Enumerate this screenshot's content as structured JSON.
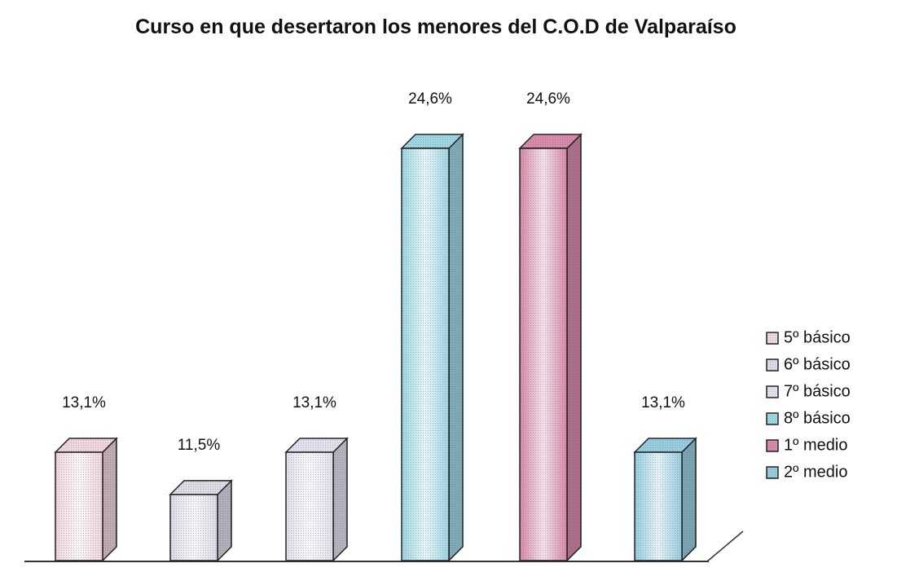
{
  "chart_data": {
    "type": "bar3d",
    "title": "Curso en que desertaron los menores del C.O.D de Valparaíso",
    "ylim": [
      9,
      25
    ],
    "series": [
      {
        "name": "5º básico",
        "color": "#efd6df",
        "values": [
          13.1
        ],
        "value_labels": [
          "13,1%"
        ]
      },
      {
        "name": "6º básico",
        "color": "#dcdce8",
        "values": [
          11.5
        ],
        "value_labels": [
          "11,5%"
        ]
      },
      {
        "name": "7º básico",
        "color": "#e4e0ee",
        "values": [
          13.1
        ],
        "value_labels": [
          "13,1%"
        ]
      },
      {
        "name": "8º básico",
        "color": "#9fd6e4",
        "values": [
          24.6
        ],
        "value_labels": [
          "24,6%"
        ]
      },
      {
        "name": "1º medio",
        "color": "#d88aad",
        "values": [
          24.6
        ],
        "value_labels": [
          "24,6%"
        ]
      },
      {
        "name": "2º medio",
        "color": "#98cde0",
        "values": [
          13.1
        ],
        "value_labels": [
          "13,1%"
        ]
      }
    ],
    "legend": "right"
  }
}
